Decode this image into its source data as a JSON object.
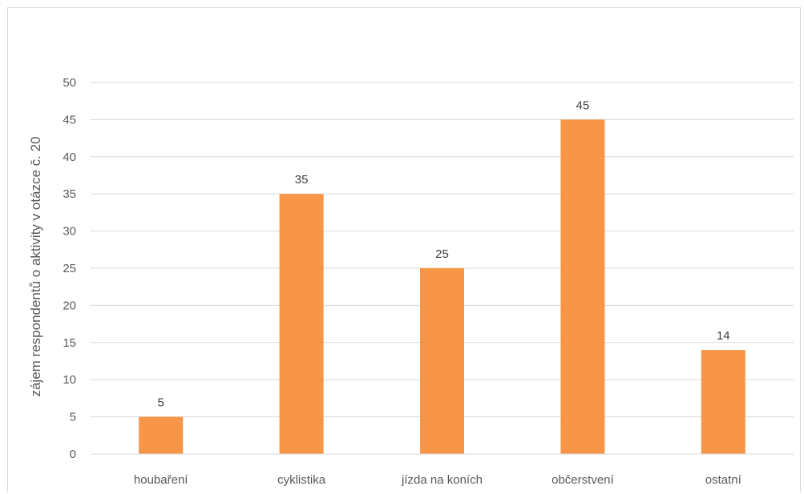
{
  "chart_data": {
    "type": "bar",
    "categories": [
      "houbaření",
      "cyklistika",
      "jízda na koních",
      "občerstvení",
      "ostatní"
    ],
    "values": [
      5,
      35,
      25,
      45,
      14
    ],
    "title": "",
    "xlabel": "",
    "ylabel": "zájem respondentů o aktivity v otázce č. 20",
    "ylim": [
      0,
      50
    ],
    "yticks": [
      0,
      5,
      10,
      15,
      20,
      25,
      30,
      35,
      40,
      45,
      50
    ],
    "grid": true,
    "legend": "none",
    "data_labels": true,
    "bar_color": "#f79646",
    "grid_color": "#d9d9d9"
  }
}
